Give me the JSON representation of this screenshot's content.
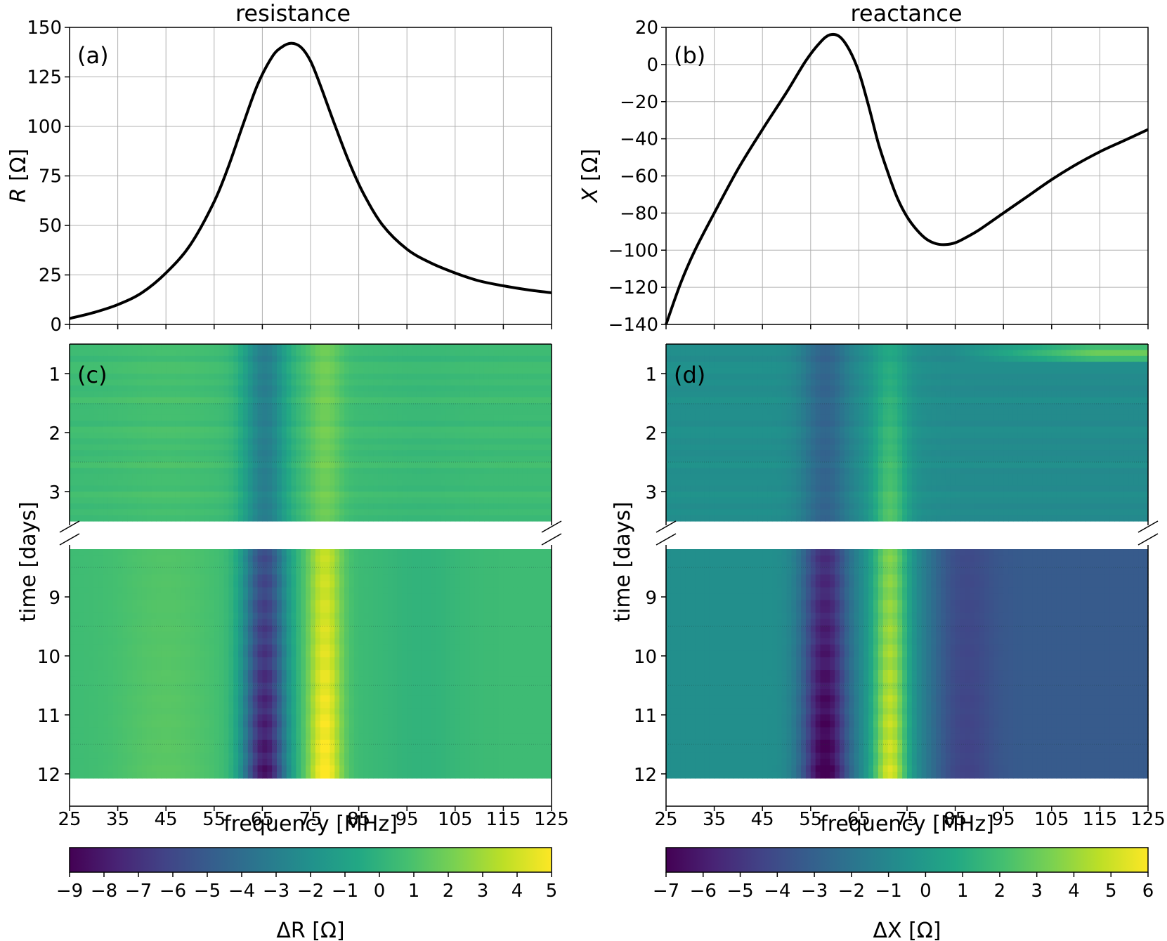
{
  "chart_data": [
    {
      "id": "a",
      "type": "line",
      "title": "resistance",
      "panel_label": "(a)",
      "xlabel": "frequency [MHz]",
      "ylabel": "R [Ω]",
      "xlim": [
        25,
        125
      ],
      "ylim": [
        0,
        150
      ],
      "xticks": [
        25,
        35,
        45,
        55,
        65,
        75,
        85,
        95,
        105,
        115,
        125
      ],
      "yticks": [
        0,
        25,
        50,
        75,
        100,
        125,
        150
      ],
      "grid": true,
      "series": [
        {
          "name": "R",
          "x": [
            25,
            30,
            35,
            40,
            45,
            50,
            55,
            58,
            61,
            64,
            67,
            69,
            71,
            73,
            75,
            77,
            80,
            83,
            86,
            90,
            95,
            100,
            105,
            110,
            115,
            120,
            125
          ],
          "y": [
            3,
            6,
            10,
            16,
            26,
            40,
            62,
            80,
            101,
            121,
            135,
            140,
            142,
            140,
            133,
            121,
            101,
            82,
            66,
            50,
            38,
            31,
            26,
            22,
            19.5,
            17.5,
            16
          ]
        }
      ]
    },
    {
      "id": "b",
      "type": "line",
      "title": "reactance",
      "panel_label": "(b)",
      "xlabel": "frequency [MHz]",
      "ylabel": "X [Ω]",
      "xlim": [
        25,
        125
      ],
      "ylim": [
        -140,
        20
      ],
      "xticks": [
        25,
        35,
        45,
        55,
        65,
        75,
        85,
        95,
        105,
        115,
        125
      ],
      "yticks": [
        -140,
        -120,
        -100,
        -80,
        -60,
        -40,
        -20,
        0,
        20
      ],
      "ytick_labels": [
        "−140",
        "−120",
        "−100",
        "−80",
        "−60",
        "−40",
        "−20",
        "0",
        "20"
      ],
      "grid": true,
      "series": [
        {
          "name": "X",
          "x": [
            25,
            28,
            31,
            35,
            40,
            45,
            50,
            54,
            57,
            59,
            61,
            63,
            65,
            67,
            69,
            71,
            73,
            75,
            77,
            79,
            81,
            83,
            85,
            87,
            90,
            95,
            100,
            105,
            110,
            115,
            120,
            125
          ],
          "y": [
            -140,
            -118,
            -100,
            -80,
            -56,
            -35,
            -15,
            2,
            12,
            16,
            15,
            8,
            -4,
            -22,
            -42,
            -58,
            -72,
            -82,
            -89,
            -94,
            -96.5,
            -97,
            -96,
            -93.5,
            -89,
            -80,
            -71,
            -62,
            -54,
            -47,
            -41,
            -35
          ]
        }
      ]
    },
    {
      "id": "c",
      "type": "heatmap",
      "panel_label": "(c)",
      "xlabel": "frequency [MHz]",
      "ylabel": "time [days]",
      "xlim": [
        25,
        125
      ],
      "xticks": [
        25,
        35,
        45,
        55,
        65,
        75,
        85,
        95,
        105,
        115,
        125
      ],
      "ytick_labels_top": [
        "1",
        "2",
        "3"
      ],
      "ytick_labels_bottom": [
        "9",
        "10",
        "11",
        "12"
      ],
      "colorbar": {
        "label": "ΔR [Ω]",
        "min": -9,
        "max": 5,
        "ticks": [
          "−9",
          "−8",
          "−7",
          "−6",
          "−5",
          "−4",
          "−3",
          "−2",
          "−1",
          "0",
          "1",
          "2",
          "3",
          "4",
          "5"
        ]
      }
    },
    {
      "id": "d",
      "type": "heatmap",
      "panel_label": "(d)",
      "xlabel": "frequency [MHz]",
      "ylabel": "time [days]",
      "xlim": [
        25,
        125
      ],
      "xticks": [
        25,
        35,
        45,
        55,
        65,
        75,
        85,
        95,
        105,
        115,
        125
      ],
      "ytick_labels_top": [
        "1",
        "2",
        "3"
      ],
      "ytick_labels_bottom": [
        "9",
        "10",
        "11",
        "12"
      ],
      "colorbar": {
        "label": "ΔX [Ω]",
        "min": -7,
        "max": 6,
        "ticks": [
          "−7",
          "−6",
          "−5",
          "−4",
          "−3",
          "−2",
          "−1",
          "0",
          "1",
          "2",
          "3",
          "4",
          "5",
          "6"
        ]
      }
    }
  ]
}
